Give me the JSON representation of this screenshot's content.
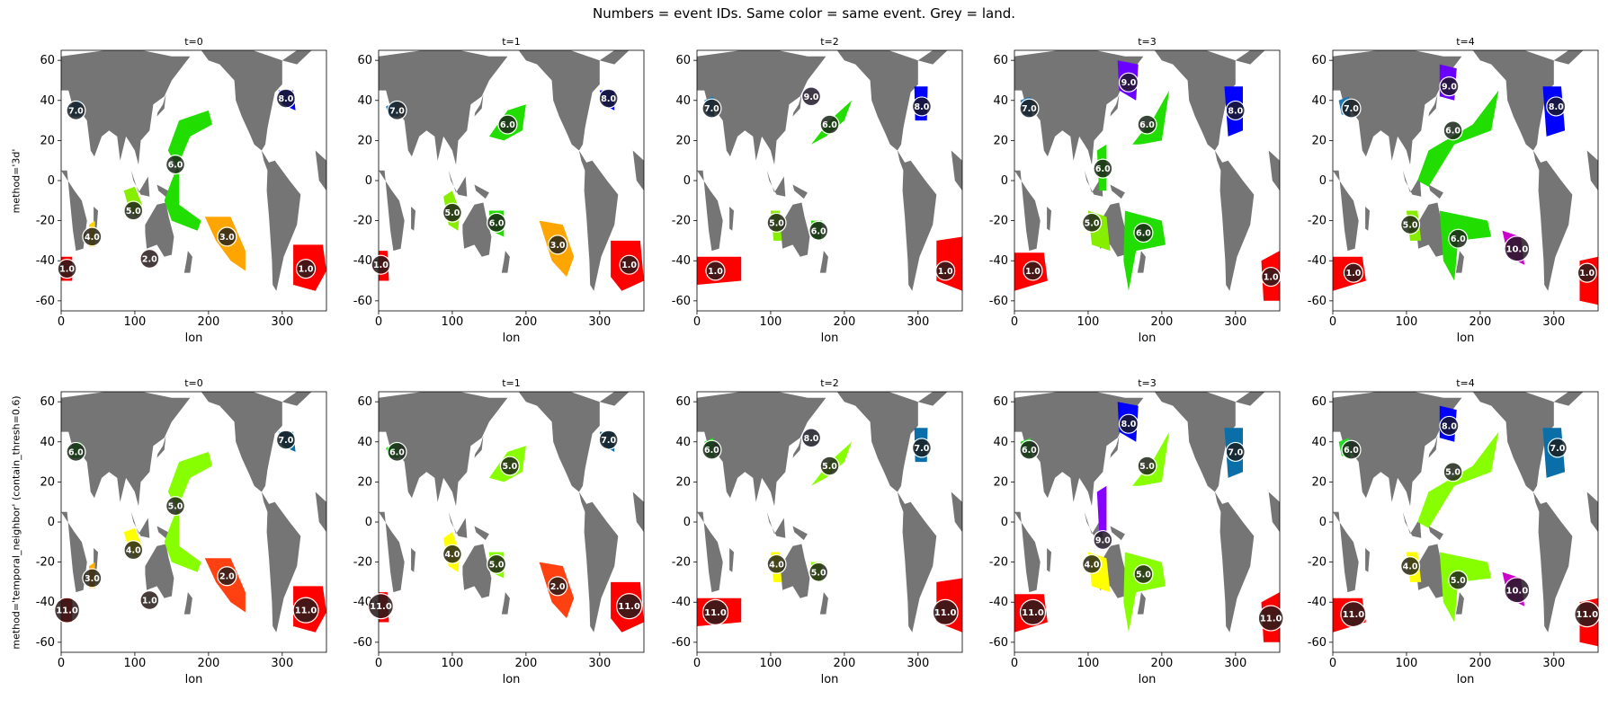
{
  "figure": {
    "title": "Numbers = event IDs.  Same color = same event.  Grey = land.",
    "row_labels": [
      "method='3d'",
      "method='temporal_neighbor'  (contain_thresh=0.6)"
    ],
    "panel_titles": [
      "t=0",
      "t=1",
      "t=2",
      "t=3",
      "t=4"
    ],
    "xlabel": "lon",
    "xticks": [
      0,
      100,
      200,
      300
    ],
    "yticks": [
      60,
      40,
      20,
      0,
      -20,
      -40,
      -60
    ],
    "xlim": [
      0,
      360
    ],
    "ylim": [
      -65,
      65
    ],
    "land_color": "#757575"
  },
  "chart_data": [
    {
      "type": "scatter",
      "method": "3d",
      "time": "t=0",
      "events": [
        {
          "id": "7.0",
          "lon": 20,
          "lat": 35,
          "color": "#1f77b4"
        },
        {
          "id": "8.0",
          "lon": 305,
          "lat": 41,
          "color": "#0000ff"
        },
        {
          "id": "6.0",
          "lon": 155,
          "lat": 8,
          "color": "#22dd00"
        },
        {
          "id": "5.0",
          "lon": 98,
          "lat": -15,
          "color": "#88ee00"
        },
        {
          "id": "4.0",
          "lon": 42,
          "lat": -28,
          "color": "#ffd400"
        },
        {
          "id": "3.0",
          "lon": 225,
          "lat": -28,
          "color": "#ffa500"
        },
        {
          "id": "2.0",
          "lon": 120,
          "lat": -39,
          "color": "#ff2020"
        },
        {
          "id": "1.0",
          "lon": 8,
          "lat": -44,
          "color": "#ff0000"
        },
        {
          "id": "1.0",
          "lon": 332,
          "lat": -44,
          "color": "#ff0000"
        }
      ]
    },
    {
      "type": "scatter",
      "method": "3d",
      "time": "t=1",
      "events": [
        {
          "id": "7.0",
          "lon": 25,
          "lat": 35,
          "color": "#1f77b4"
        },
        {
          "id": "8.0",
          "lon": 312,
          "lat": 41,
          "color": "#0000ff"
        },
        {
          "id": "6.0",
          "lon": 175,
          "lat": 28,
          "color": "#22dd00"
        },
        {
          "id": "5.0",
          "lon": 100,
          "lat": -16,
          "color": "#88ee00"
        },
        {
          "id": "6.0",
          "lon": 160,
          "lat": -21,
          "color": "#22dd00"
        },
        {
          "id": "3.0",
          "lon": 243,
          "lat": -32,
          "color": "#ffa500"
        },
        {
          "id": "1.0",
          "lon": 3,
          "lat": -42,
          "color": "#ff0000"
        },
        {
          "id": "1.0",
          "lon": 340,
          "lat": -42,
          "color": "#ff0000"
        }
      ]
    },
    {
      "type": "scatter",
      "method": "3d",
      "time": "t=2",
      "events": [
        {
          "id": "7.0",
          "lon": 20,
          "lat": 36,
          "color": "#1f77b4"
        },
        {
          "id": "9.0",
          "lon": 155,
          "lat": 42,
          "color": "#6a00ff"
        },
        {
          "id": "8.0",
          "lon": 305,
          "lat": 37,
          "color": "#0000ff"
        },
        {
          "id": "6.0",
          "lon": 180,
          "lat": 28,
          "color": "#22dd00"
        },
        {
          "id": "5.0",
          "lon": 108,
          "lat": -21,
          "color": "#88ee00"
        },
        {
          "id": "6.0",
          "lon": 165,
          "lat": -25,
          "color": "#22dd00"
        },
        {
          "id": "1.0",
          "lon": 25,
          "lat": -45,
          "color": "#ff0000"
        },
        {
          "id": "1.0",
          "lon": 337,
          "lat": -45,
          "color": "#ff0000"
        }
      ]
    },
    {
      "type": "scatter",
      "method": "3d",
      "time": "t=3",
      "events": [
        {
          "id": "7.0",
          "lon": 20,
          "lat": 36,
          "color": "#1f77b4"
        },
        {
          "id": "9.0",
          "lon": 155,
          "lat": 49,
          "color": "#6a00ff"
        },
        {
          "id": "8.0",
          "lon": 300,
          "lat": 35,
          "color": "#0000ff"
        },
        {
          "id": "6.0",
          "lon": 180,
          "lat": 28,
          "color": "#22dd00"
        },
        {
          "id": "6.0",
          "lon": 120,
          "lat": 6,
          "color": "#22dd00"
        },
        {
          "id": "5.0",
          "lon": 105,
          "lat": -21,
          "color": "#88ee00"
        },
        {
          "id": "6.0",
          "lon": 175,
          "lat": -26,
          "color": "#22dd00"
        },
        {
          "id": "1.0",
          "lon": 25,
          "lat": -45,
          "color": "#ff0000"
        },
        {
          "id": "1.0",
          "lon": 348,
          "lat": -48,
          "color": "#ff0000"
        }
      ]
    },
    {
      "type": "scatter",
      "method": "3d",
      "time": "t=4",
      "events": [
        {
          "id": "7.0",
          "lon": 25,
          "lat": 36,
          "color": "#1f77b4"
        },
        {
          "id": "9.0",
          "lon": 158,
          "lat": 47,
          "color": "#6a00ff"
        },
        {
          "id": "8.0",
          "lon": 303,
          "lat": 37,
          "color": "#0000ff"
        },
        {
          "id": "6.0",
          "lon": 163,
          "lat": 25,
          "color": "#22dd00"
        },
        {
          "id": "5.0",
          "lon": 105,
          "lat": -22,
          "color": "#88ee00"
        },
        {
          "id": "6.0",
          "lon": 170,
          "lat": -29,
          "color": "#22dd00"
        },
        {
          "id": "10.0",
          "lon": 250,
          "lat": -34,
          "color": "#cc00cc"
        },
        {
          "id": "1.0",
          "lon": 28,
          "lat": -46,
          "color": "#ff0000"
        },
        {
          "id": "1.0",
          "lon": 345,
          "lat": -46,
          "color": "#ff0000"
        }
      ]
    },
    {
      "type": "scatter",
      "method": "temporal_neighbor",
      "time": "t=0",
      "events": [
        {
          "id": "6.0",
          "lon": 20,
          "lat": 35,
          "color": "#22dd22"
        },
        {
          "id": "7.0",
          "lon": 305,
          "lat": 41,
          "color": "#0a6ea8"
        },
        {
          "id": "5.0",
          "lon": 155,
          "lat": 8,
          "color": "#88ff00"
        },
        {
          "id": "4.0",
          "lon": 98,
          "lat": -14,
          "color": "#ffff00"
        },
        {
          "id": "3.0",
          "lon": 42,
          "lat": -28,
          "color": "#ffb000"
        },
        {
          "id": "2.0",
          "lon": 225,
          "lat": -27,
          "color": "#ff4010"
        },
        {
          "id": "1.0",
          "lon": 120,
          "lat": -39,
          "color": "#ff2a00"
        },
        {
          "id": "11.0",
          "lon": 8,
          "lat": -44,
          "color": "#ff0000"
        },
        {
          "id": "11.0",
          "lon": 332,
          "lat": -44,
          "color": "#ff0000"
        }
      ]
    },
    {
      "type": "scatter",
      "method": "temporal_neighbor",
      "time": "t=1",
      "events": [
        {
          "id": "6.0",
          "lon": 25,
          "lat": 35,
          "color": "#22dd22"
        },
        {
          "id": "7.0",
          "lon": 312,
          "lat": 41,
          "color": "#0a6ea8"
        },
        {
          "id": "5.0",
          "lon": 178,
          "lat": 28,
          "color": "#88ff00"
        },
        {
          "id": "4.0",
          "lon": 100,
          "lat": -16,
          "color": "#ffff00"
        },
        {
          "id": "5.0",
          "lon": 160,
          "lat": -21,
          "color": "#88ff00"
        },
        {
          "id": "2.0",
          "lon": 243,
          "lat": -32,
          "color": "#ff4010"
        },
        {
          "id": "11.0",
          "lon": 3,
          "lat": -42,
          "color": "#ff0000"
        },
        {
          "id": "11.0",
          "lon": 340,
          "lat": -42,
          "color": "#ff0000"
        }
      ]
    },
    {
      "type": "scatter",
      "method": "temporal_neighbor",
      "time": "t=2",
      "events": [
        {
          "id": "6.0",
          "lon": 20,
          "lat": 36,
          "color": "#22dd22"
        },
        {
          "id": "8.0",
          "lon": 155,
          "lat": 42,
          "color": "#0000cc"
        },
        {
          "id": "7.0",
          "lon": 305,
          "lat": 37,
          "color": "#0a6ea8"
        },
        {
          "id": "5.0",
          "lon": 180,
          "lat": 28,
          "color": "#88ff00"
        },
        {
          "id": "4.0",
          "lon": 108,
          "lat": -21,
          "color": "#ffff00"
        },
        {
          "id": "5.0",
          "lon": 165,
          "lat": -25,
          "color": "#88ff00"
        },
        {
          "id": "11.0",
          "lon": 25,
          "lat": -45,
          "color": "#ff0000"
        },
        {
          "id": "11.0",
          "lon": 337,
          "lat": -45,
          "color": "#ff0000"
        }
      ]
    },
    {
      "type": "scatter",
      "method": "temporal_neighbor",
      "time": "t=3",
      "events": [
        {
          "id": "6.0",
          "lon": 20,
          "lat": 36,
          "color": "#22dd22"
        },
        {
          "id": "8.0",
          "lon": 155,
          "lat": 49,
          "color": "#0000ff"
        },
        {
          "id": "7.0",
          "lon": 300,
          "lat": 35,
          "color": "#0a6ea8"
        },
        {
          "id": "5.0",
          "lon": 180,
          "lat": 28,
          "color": "#88ff00"
        },
        {
          "id": "9.0",
          "lon": 120,
          "lat": -9,
          "color": "#8800ff"
        },
        {
          "id": "4.0",
          "lon": 105,
          "lat": -21,
          "color": "#ffff00"
        },
        {
          "id": "5.0",
          "lon": 175,
          "lat": -26,
          "color": "#88ff00"
        },
        {
          "id": "11.0",
          "lon": 25,
          "lat": -45,
          "color": "#ff0000"
        },
        {
          "id": "11.0",
          "lon": 348,
          "lat": -48,
          "color": "#ff0000"
        }
      ]
    },
    {
      "type": "scatter",
      "method": "temporal_neighbor",
      "time": "t=4",
      "events": [
        {
          "id": "6.0",
          "lon": 25,
          "lat": 36,
          "color": "#22dd22"
        },
        {
          "id": "8.0",
          "lon": 158,
          "lat": 48,
          "color": "#0000ff"
        },
        {
          "id": "7.0",
          "lon": 305,
          "lat": 37,
          "color": "#0a6ea8"
        },
        {
          "id": "5.0",
          "lon": 163,
          "lat": 25,
          "color": "#88ff00"
        },
        {
          "id": "4.0",
          "lon": 105,
          "lat": -22,
          "color": "#ffff00"
        },
        {
          "id": "5.0",
          "lon": 170,
          "lat": -29,
          "color": "#88ff00"
        },
        {
          "id": "10.0",
          "lon": 250,
          "lat": -34,
          "color": "#cc00cc"
        },
        {
          "id": "11.0",
          "lon": 28,
          "lat": -46,
          "color": "#ff0000"
        },
        {
          "id": "11.0",
          "lon": 345,
          "lat": -46,
          "color": "#ff0000"
        }
      ]
    }
  ]
}
